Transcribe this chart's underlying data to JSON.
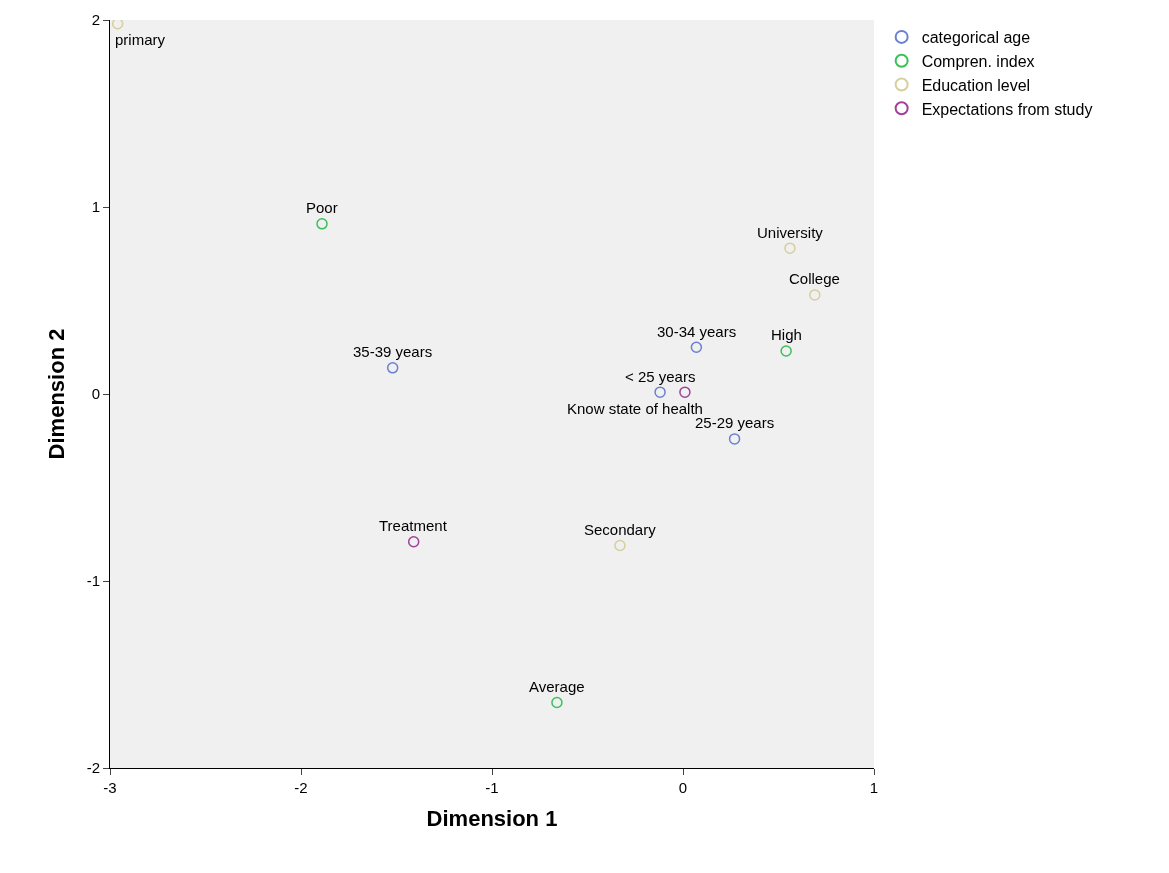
{
  "chart_data": {
    "type": "scatter",
    "xlabel": "Dimension 1",
    "ylabel": "Dimension 2",
    "xlim": [
      -3,
      1
    ],
    "ylim": [
      -2,
      2
    ],
    "xticks": [
      -3,
      -2,
      -1,
      0,
      1
    ],
    "yticks": [
      -2,
      -1,
      0,
      1,
      2
    ],
    "grid": false,
    "legend": "top right",
    "marker": "circle",
    "series": [
      {
        "name": "categorical age",
        "color": "#6a80d0",
        "x": [
          0.07,
          -1.52,
          -0.12,
          0.27
        ],
        "values": [
          0.25,
          0.14,
          0.01,
          -0.24
        ]
      },
      {
        "name": "Compren. index",
        "color": "#3cbf58",
        "x": [
          -1.89,
          0.54,
          -0.66
        ],
        "values": [
          0.91,
          0.23,
          -1.65
        ]
      },
      {
        "name": "Education level",
        "color": "#d6cf9e",
        "x": [
          -2.96,
          0.56,
          0.69,
          -0.33
        ],
        "values": [
          1.98,
          0.78,
          0.53,
          -0.81
        ]
      },
      {
        "name": "Expectations from study",
        "color": "#a0409c",
        "x": [
          0.01,
          -1.41
        ],
        "values": [
          0.01,
          -0.79
        ]
      }
    ],
    "annotations": [
      {
        "text": "30-34 years",
        "x": 0.07,
        "y": 0.25
      },
      {
        "text": "35-39 years",
        "x": -1.52,
        "y": 0.14
      },
      {
        "text": "< 25 years",
        "x": -0.12,
        "y": 0.01
      },
      {
        "text": "25-29 years",
        "x": 0.27,
        "y": -0.24
      },
      {
        "text": "Poor",
        "x": -1.89,
        "y": 0.91
      },
      {
        "text": "High",
        "x": 0.54,
        "y": 0.23
      },
      {
        "text": "Average",
        "x": -0.66,
        "y": -1.65
      },
      {
        "text": "primary",
        "x": -2.96,
        "y": 1.98
      },
      {
        "text": "University",
        "x": 0.56,
        "y": 0.78
      },
      {
        "text": "College",
        "x": 0.69,
        "y": 0.53
      },
      {
        "text": "Secondary",
        "x": -0.33,
        "y": -0.81
      },
      {
        "text": "Know state of health",
        "x": 0.01,
        "y": 0.01
      },
      {
        "text": "Treatment",
        "x": -1.41,
        "y": -0.79
      }
    ]
  }
}
